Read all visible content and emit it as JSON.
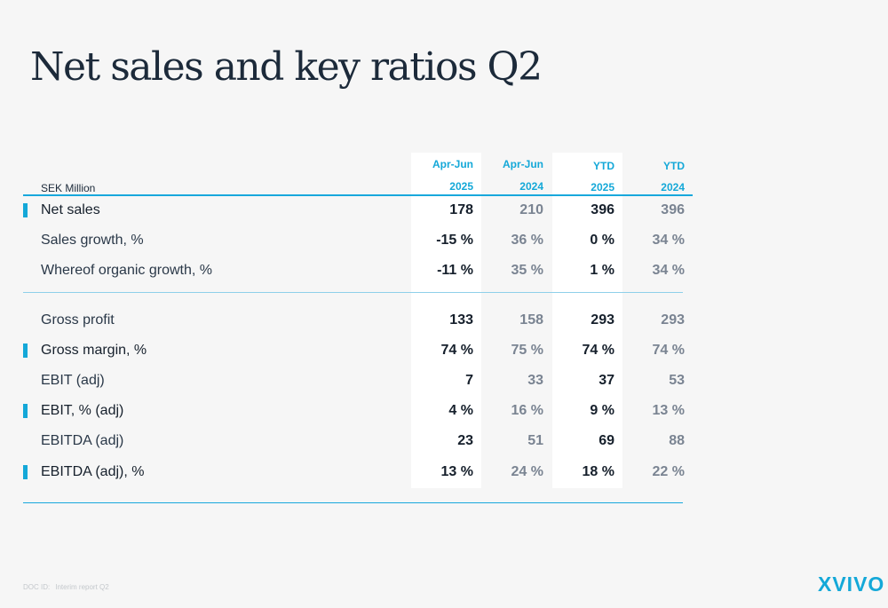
{
  "title": "Net sales and key ratios Q2",
  "unit_label": "SEK Million",
  "columns": [
    {
      "period": "Apr-Jun",
      "year": "2025"
    },
    {
      "period": "Apr-Jun",
      "year": "2024"
    },
    {
      "period": "YTD",
      "year": "2025"
    },
    {
      "period": "YTD",
      "year": "2024"
    }
  ],
  "rows": [
    {
      "label": "Net sales",
      "values": [
        "178",
        "210",
        "396",
        "396"
      ]
    },
    {
      "label": "Sales growth, %",
      "values": [
        "-15 %",
        "36 %",
        "0 %",
        "34 %"
      ]
    },
    {
      "label": "Whereof organic growth, %",
      "values": [
        "-11 %",
        "35 %",
        "1 %",
        "34 %"
      ]
    },
    {
      "label": "Gross profit",
      "values": [
        "133",
        "158",
        "293",
        "293"
      ]
    },
    {
      "label": "Gross margin, %",
      "values": [
        "74 %",
        "75 %",
        "74 %",
        "74 %"
      ]
    },
    {
      "label": "EBIT (adj)",
      "values": [
        "7",
        "33",
        "37",
        "53"
      ]
    },
    {
      "label": "EBIT, % (adj)",
      "values": [
        "4 %",
        "16 %",
        "9 %",
        "13 %"
      ]
    },
    {
      "label": "EBITDA (adj)",
      "values": [
        "23",
        "51",
        "69",
        "88"
      ]
    },
    {
      "label": "EBITDA (adj), %",
      "values": [
        "13 %",
        "24 %",
        "18 %",
        "22 %"
      ]
    }
  ],
  "footer": {
    "doc_id_label": "DOC ID:",
    "doc_name": "Interim report Q2"
  },
  "logo": "XVIVO",
  "colors": {
    "accent": "#14a8d8",
    "text": "#1c2a3a",
    "muted": "#7a8492",
    "background": "#f6f6f6"
  }
}
